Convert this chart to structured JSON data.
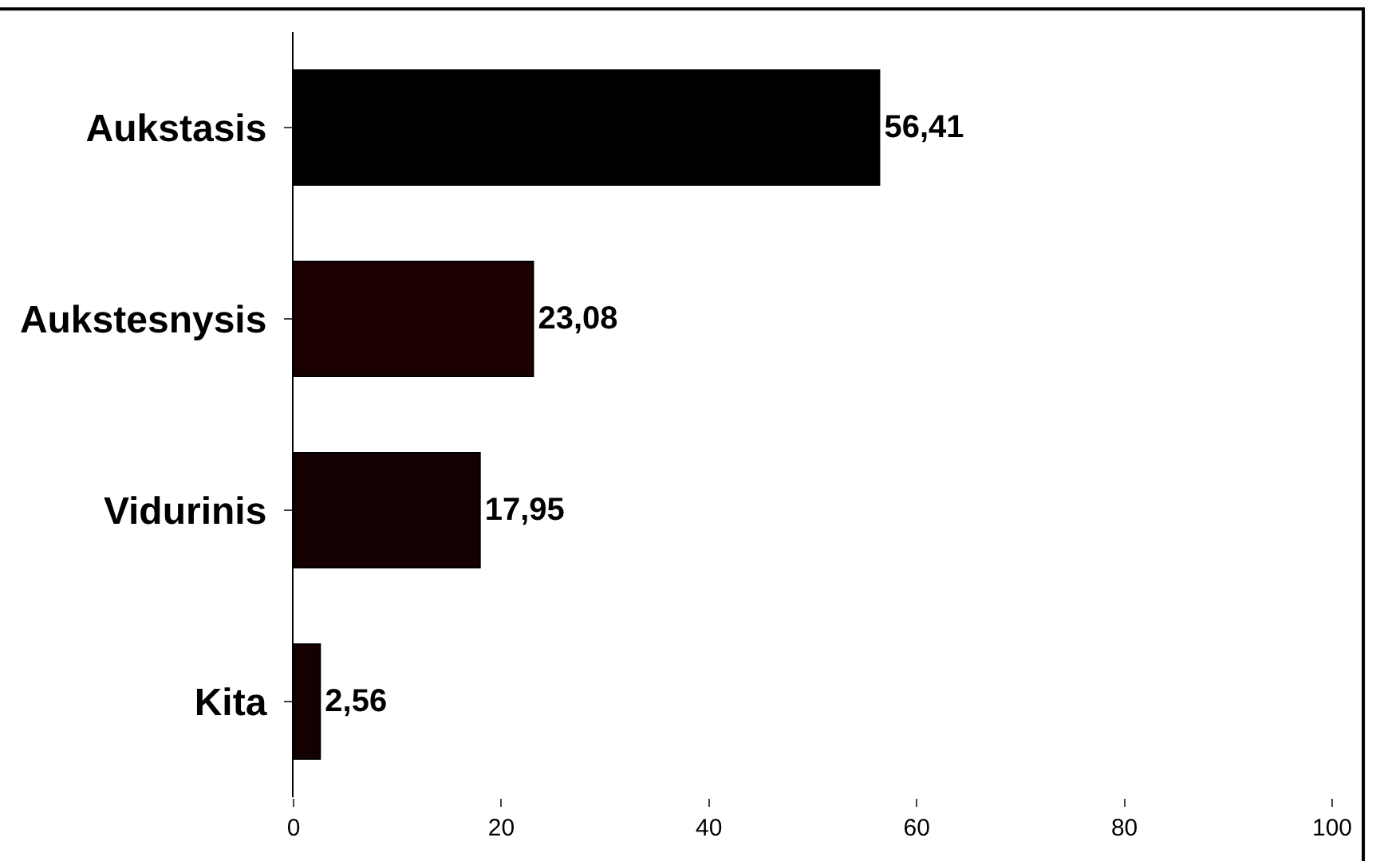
{
  "chart_data": {
    "type": "bar",
    "orientation": "horizontal",
    "categories": [
      "Aukstasis",
      "Aukstesnysis",
      "Vidurinis",
      "Kita"
    ],
    "values": [
      56.41,
      23.08,
      17.95,
      2.56
    ],
    "value_labels": [
      "56,41",
      "23,08",
      "17,95",
      "2,56"
    ],
    "colors": [
      "#000000",
      "#1a0000",
      "#140000",
      "#140000"
    ],
    "xlim": [
      0,
      100
    ],
    "xticks": [
      0,
      20,
      40,
      60,
      80,
      100
    ]
  }
}
